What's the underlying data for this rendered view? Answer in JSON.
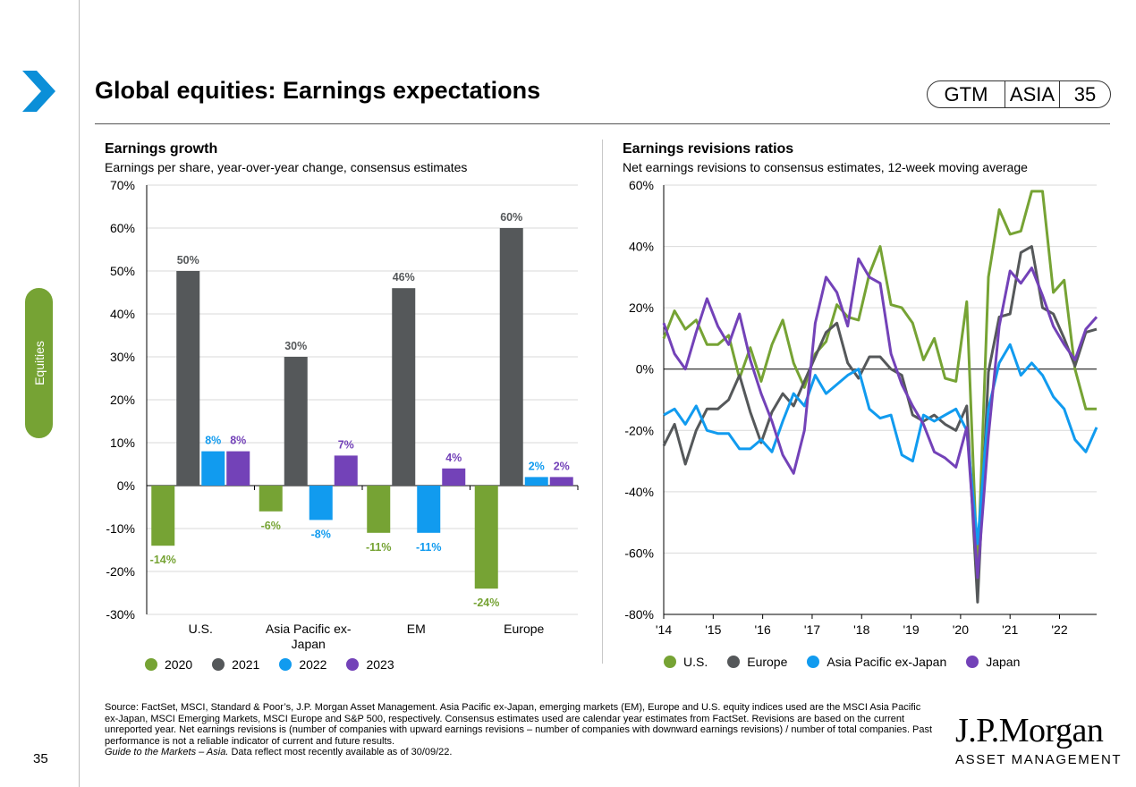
{
  "header": {
    "title": "Global equities: Earnings expectations",
    "badge": [
      "GTM",
      "ASIA",
      "35"
    ]
  },
  "sidebar": {
    "section_label": "Equities",
    "page_number": "35",
    "accent": "#76a334"
  },
  "left_panel": {
    "title": "Earnings growth",
    "subtitle": "Earnings per share, year-over-year change, consensus estimates"
  },
  "right_panel": {
    "title": "Earnings revisions ratios",
    "subtitle": "Net earnings revisions to consensus estimates, 12-week moving average"
  },
  "footer": {
    "source": "Source: FactSet, MSCI, Standard & Poor’s, J.P. Morgan Asset Management. Asia Pacific ex-Japan, emerging markets (EM), Europe and U.S. equity indices used are the MSCI Asia Pacific ex-Japan, MSCI Emerging Markets, MSCI Europe and S&P 500, respectively. Consensus estimates used are calendar year estimates from FactSet. Revisions are based on the current unreported year. Net earnings revisions is (number of companies with upward earnings revisions – number of companies with downward earnings revisions) / number of total companies. Past performance is not a reliable indicator of current and future results.",
    "guide_italic": "Guide to the Markets – Asia.",
    "guide_rest": " Data reflect most recently available as of 30/09/22.",
    "logo_line1": "J.P.Morgan",
    "logo_line2": "ASSET MANAGEMENT"
  },
  "chart_data": [
    {
      "type": "bar",
      "categories": [
        "U.S.",
        "Asia Pacific ex-\nJapan",
        "EM",
        "Europe"
      ],
      "series": [
        {
          "name": "2020",
          "color": "#76a334",
          "values": [
            -14,
            -6,
            -11,
            -24
          ]
        },
        {
          "name": "2021",
          "color": "#55585a",
          "values": [
            50,
            30,
            46,
            60
          ]
        },
        {
          "name": "2022",
          "color": "#119bef",
          "values": [
            8,
            -8,
            -11,
            2
          ]
        },
        {
          "name": "2023",
          "color": "#7342b8",
          "values": [
            8,
            7,
            4,
            2
          ]
        }
      ],
      "data_labels": [
        [
          "-14%",
          "-6%",
          "-11%",
          "-24%"
        ],
        [
          "50%",
          "30%",
          "46%",
          "60%"
        ],
        [
          "8%",
          "-8%",
          "-11%",
          "2%"
        ],
        [
          "8%",
          "7%",
          "4%",
          "2%"
        ]
      ],
      "ylim": [
        -30,
        70
      ],
      "yticks": [
        "70%",
        "60%",
        "50%",
        "40%",
        "30%",
        "20%",
        "10%",
        "0%",
        "-10%",
        "-20%",
        "-30%"
      ],
      "grid": true,
      "legend": "bottom"
    },
    {
      "type": "line",
      "x_start": 2014.0,
      "x_end": 2022.75,
      "xticks": [
        "'14",
        "'15",
        "'16",
        "'17",
        "'18",
        "'19",
        "'20",
        "'21",
        "'22"
      ],
      "ylim": [
        -80,
        60
      ],
      "yticks": [
        "60%",
        "40%",
        "20%",
        "0%",
        "-20%",
        "-40%",
        "-60%",
        "-80%"
      ],
      "grid": true,
      "legend": "bottom",
      "series": [
        {
          "name": "U.S.",
          "color": "#76a334",
          "values": [
            10,
            19,
            13,
            16,
            8,
            8,
            11,
            -3,
            7,
            -4,
            8,
            16,
            2,
            -6,
            5,
            9,
            21,
            17,
            16,
            31,
            40,
            21,
            20,
            15,
            3,
            10,
            -3,
            -4,
            22,
            -67,
            30,
            52,
            44,
            45,
            58,
            58,
            25,
            29,
            0,
            -13,
            -13
          ]
        },
        {
          "name": "Europe",
          "color": "#55585a",
          "values": [
            -25,
            -18,
            -31,
            -20,
            -13,
            -13,
            -10,
            -2,
            -14,
            -24,
            -14,
            -8,
            -12,
            -4,
            4,
            12,
            15,
            2,
            -3,
            4,
            4,
            0,
            -2,
            -15,
            -17,
            -15,
            -18,
            -20,
            -12,
            -76,
            -1,
            17,
            18,
            38,
            40,
            20,
            18,
            10,
            1,
            12,
            13
          ]
        },
        {
          "name": "Asia Pacific ex-Japan",
          "color": "#119bef",
          "values": [
            -15,
            -13,
            -18,
            -12,
            -20,
            -21,
            -21,
            -26,
            -26,
            -23,
            -27,
            -17,
            -8,
            -12,
            -2,
            -8,
            -5,
            -2,
            0,
            -13,
            -16,
            -15,
            -28,
            -30,
            -15,
            -17,
            -15,
            -13,
            -20,
            -57,
            -13,
            2,
            8,
            -2,
            2,
            -2,
            -9,
            -13,
            -23,
            -27,
            -19
          ]
        },
        {
          "name": "Japan",
          "color": "#7342b8",
          "values": [
            15,
            5,
            0,
            12,
            23,
            14,
            8,
            18,
            3,
            -8,
            -17,
            -28,
            -34,
            -20,
            15,
            30,
            25,
            14,
            36,
            30,
            28,
            5,
            -5,
            -12,
            -18,
            -27,
            -29,
            -32,
            -19,
            -68,
            -22,
            14,
            32,
            28,
            33,
            24,
            14,
            8,
            3,
            13,
            17
          ]
        }
      ]
    }
  ]
}
